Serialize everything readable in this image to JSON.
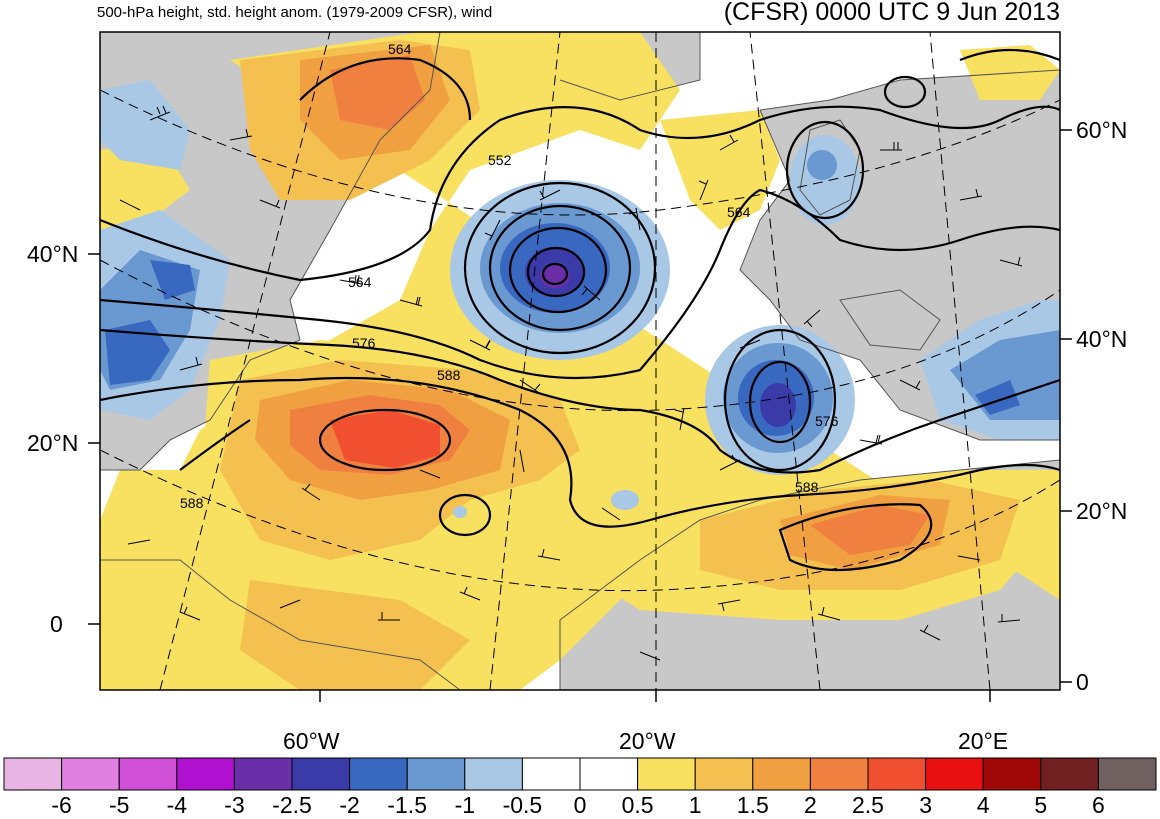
{
  "header": {
    "left_title": "500-hPa height, std. height anom. (1979-2009 CFSR), wind",
    "right_title": "(CFSR) 0000 UTC 9 Jun 2013"
  },
  "map": {
    "left_lat_labels": [
      "40°N",
      "20°N",
      "0"
    ],
    "right_lat_labels": [
      "60°N",
      "40°N",
      "20°N",
      "0"
    ],
    "lon_labels": [
      "60°W",
      "20°W",
      "20°E"
    ],
    "contour_labels": [
      "564",
      "552",
      "564",
      "564",
      "576",
      "588",
      "588",
      "576",
      "588"
    ],
    "colors": {
      "land": "#c8c8c8",
      "ocean": "#ffffff",
      "coast": "#555555",
      "contour": "#000000"
    }
  },
  "colorbar": {
    "colors": [
      "#e8b4e4",
      "#e080e0",
      "#d050d8",
      "#b010d0",
      "#6a2fa8",
      "#3a3aa8",
      "#3868c0",
      "#6a98d0",
      "#a8c8e6",
      "#ffffff",
      "#ffffff",
      "#f8e060",
      "#f4c050",
      "#f0a040",
      "#f08040",
      "#f05030",
      "#e81010",
      "#a00808",
      "#702020",
      "#706060"
    ],
    "labels": [
      "-6",
      "-5",
      "-4",
      "-3",
      "-2.5",
      "-2",
      "-1.5",
      "-1",
      "-0.5",
      "0",
      "0.5",
      "1",
      "1.5",
      "2",
      "2.5",
      "3",
      "4",
      "5",
      "6"
    ]
  }
}
